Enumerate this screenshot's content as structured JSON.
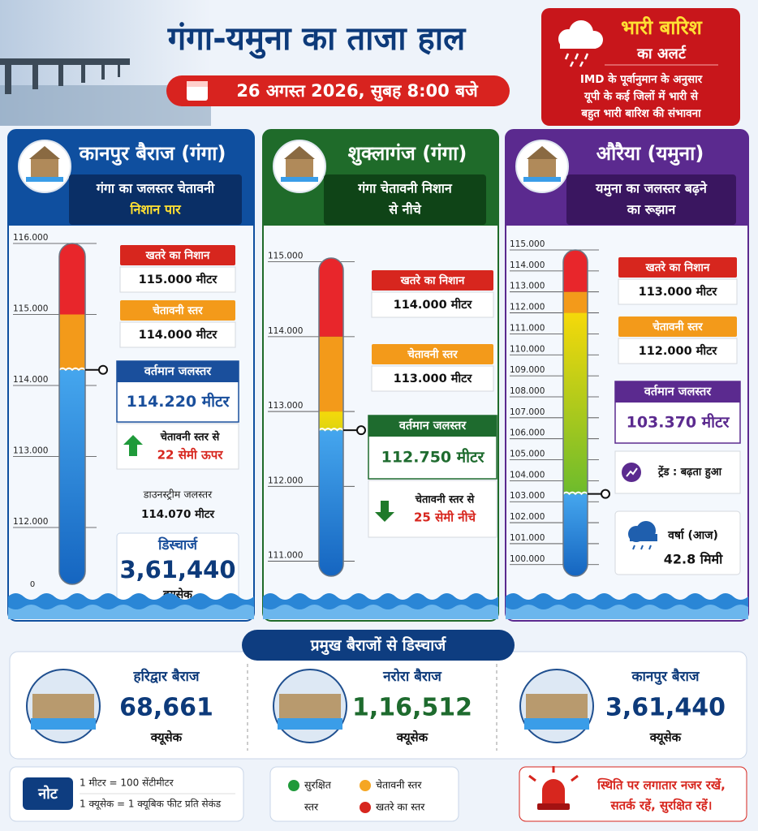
{
  "header": {
    "title": "गंगा-यमुना का ताजा हाल",
    "date": "26 अगस्त 2026, सुबह 8:00 बजे"
  },
  "alert": {
    "title": "भारी बारिश",
    "subtitle": "का अलर्ट",
    "lines": [
      "IMD के पूर्वानुमान के अनुसार",
      "यूपी के कई जिलों में भारी से",
      "बहुत भारी बारिश की संभावना"
    ]
  },
  "panels": [
    {
      "title": "कानपुर बैराज (गंगा)",
      "subtitle_lines": [
        "गंगा का जलस्तर चेतावनी",
        "निशान पार"
      ],
      "color": "#0f4f9f",
      "gauge": {
        "ylim": [
          111.2,
          116.0
        ],
        "yticks": [
          {
            "value": 116,
            "label": "116.000"
          },
          {
            "value": 115,
            "label": "115.000"
          },
          {
            "value": 114,
            "label": "114.000"
          },
          {
            "value": 113,
            "label": "113.000"
          },
          {
            "value": 112,
            "label": "112.000"
          }
        ],
        "base_label": "0",
        "danger_level": 115,
        "warning_level": 114,
        "current_level": 114.22
      },
      "danger": {
        "label": "खतरे का निशान",
        "value": "115.000 मीटर"
      },
      "warning": {
        "label": "चेतावनी स्तर",
        "value": "114.000 मीटर"
      },
      "current": {
        "label": "वर्तमान जलस्तर",
        "value": "114.220 मीटर"
      },
      "trend": {
        "direction": "up",
        "lines": [
          "चेतावनी स्तर से",
          "22 सेमी ऊपर"
        ]
      },
      "downstream": {
        "label": "डाउनस्ट्रीम जलस्तर",
        "value": "114.070 मीटर"
      },
      "discharge": {
        "label": "डिस्चार्ज",
        "value": "3,61,440",
        "unit": "क्यूसेक"
      }
    },
    {
      "title": "शुक्लागंज (गंगा)",
      "subtitle_lines": [
        "गंगा चेतावनी निशान",
        "से नीचे"
      ],
      "color": "#1f6b2a",
      "gauge": {
        "ylim": [
          110.8,
          115.05
        ],
        "yticks": [
          {
            "value": 115,
            "label": "115.000"
          },
          {
            "value": 114,
            "label": "114.000"
          },
          {
            "value": 113,
            "label": "113.000"
          },
          {
            "value": 112,
            "label": "112.000"
          },
          {
            "value": 111,
            "label": "111.000"
          }
        ],
        "danger_level": 114,
        "warning_level": 113,
        "current_level": 112.75
      },
      "danger": {
        "label": "खतरे का निशान",
        "value": "114.000 मीटर"
      },
      "warning": {
        "label": "चेतावनी स्तर",
        "value": "113.000 मीटर"
      },
      "current": {
        "label": "वर्तमान जलस्तर",
        "value": "112.750 मीटर"
      },
      "trend": {
        "direction": "down",
        "lines": [
          "चेतावनी स्तर से",
          "25 सेमी नीचे"
        ]
      }
    },
    {
      "title": "औरैया (यमुना)",
      "subtitle_lines": [
        "यमुना का जलस्तर बढ़ने",
        "का रूझान"
      ],
      "color": "#5b2a8f",
      "gauge": {
        "ylim": [
          99.45,
          115.0
        ],
        "yticks": [
          {
            "value": 115,
            "label": "115.000"
          },
          {
            "value": 114,
            "label": "114.000"
          },
          {
            "value": 113,
            "label": "113.000"
          },
          {
            "value": 112,
            "label": "112.000"
          },
          {
            "value": 111,
            "label": "111.000"
          },
          {
            "value": 110,
            "label": "110.000"
          },
          {
            "value": 109,
            "label": "109.000"
          },
          {
            "value": 108,
            "label": "108.000"
          },
          {
            "value": 107,
            "label": "107.000"
          },
          {
            "value": 106,
            "label": "106.000"
          },
          {
            "value": 105,
            "label": "105.000"
          },
          {
            "value": 104,
            "label": "104.000"
          },
          {
            "value": 103,
            "label": "103.000"
          },
          {
            "value": 102,
            "label": "102.000"
          },
          {
            "value": 101,
            "label": "101.000"
          },
          {
            "value": 100,
            "label": "100.000"
          }
        ],
        "danger_level": 113,
        "warning_level": 112,
        "current_level": 103.37
      },
      "danger": {
        "label": "खतरे का निशान",
        "value": "113.000 मीटर"
      },
      "warning": {
        "label": "चेतावनी स्तर",
        "value": "112.000 मीटर"
      },
      "current": {
        "label": "वर्तमान जलस्तर",
        "value": "103.370 मीटर"
      },
      "trend": {
        "direction": "rising",
        "lines": [
          "ट्रेंड : बढ़ता हुआ"
        ]
      },
      "rain": {
        "label": "वर्षा (आज)",
        "value": "42.8 मिमी"
      }
    }
  ],
  "discharge_section": {
    "title": "प्रमुख बैराजों से डिस्चार्ज",
    "barrages": [
      {
        "name": "हरिद्वार बैराज",
        "value": "68,661",
        "unit": "क्यूसेक",
        "color": "#0d3a7a"
      },
      {
        "name": "नरोरा बैराज",
        "value": "1,16,512",
        "unit": "क्यूसेक",
        "color": "#1e6b2e"
      },
      {
        "name": "कानपुर बैराज",
        "value": "3,61,440",
        "unit": "क्यूसेक",
        "color": "#0d3a7a"
      }
    ]
  },
  "note": {
    "title": "नोट",
    "lines": [
      "1 मीटर = 100 सेंटीमीटर",
      "1 क्यूसेक = 1 क्यूबिक फीट प्रति सेकंड"
    ]
  },
  "legend": [
    {
      "color": "#1f9a3a",
      "lines": [
        "सुरक्षित",
        "स्तर"
      ]
    },
    {
      "color": "#f5a623",
      "lines": [
        "चेतावनी स्तर"
      ]
    },
    {
      "color": "#d7261e",
      "lines": [
        "खतरे का स्तर"
      ]
    }
  ],
  "advisory": {
    "lines": [
      "स्थिति पर लगातार नजर रखें,",
      "सतर्क रहें, सुरक्षित रहें।"
    ]
  }
}
